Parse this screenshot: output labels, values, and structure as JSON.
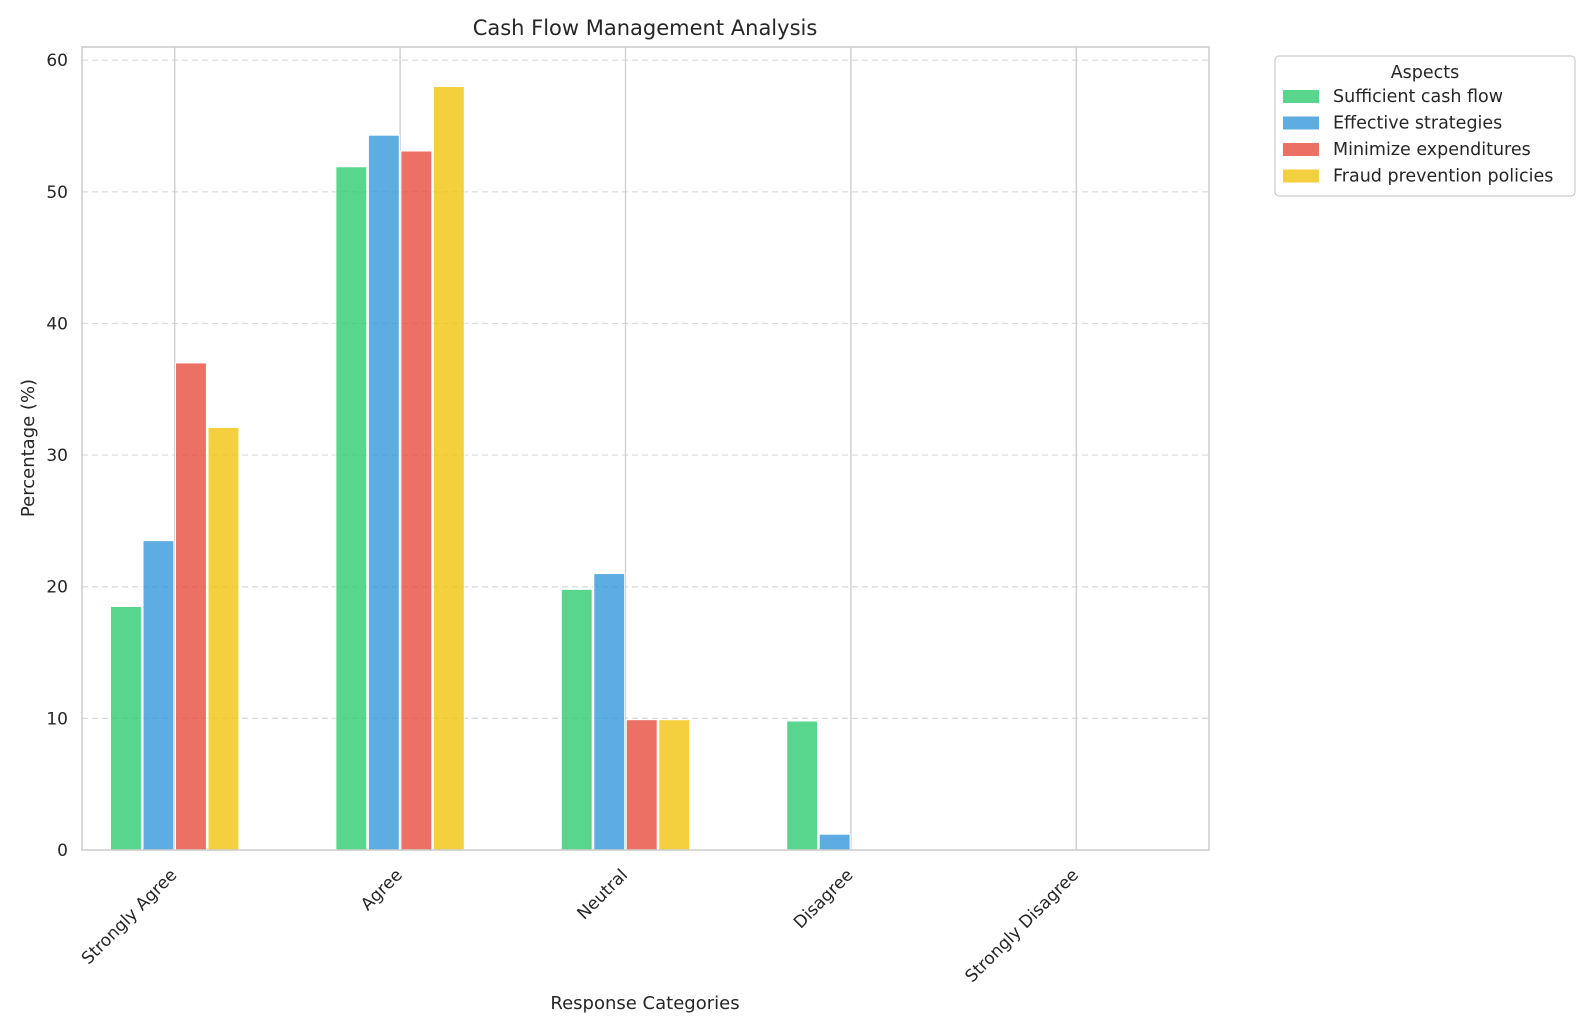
{
  "chart_data": {
    "type": "bar",
    "title": "Cash Flow Management Analysis",
    "xlabel": "Response Categories",
    "ylabel": "Percentage (%)",
    "ylim": [
      0,
      61
    ],
    "yticks": [
      0,
      10,
      20,
      30,
      40,
      50,
      60
    ],
    "grid": "y-dashed",
    "categories": [
      "Strongly Agree",
      "Agree",
      "Neutral",
      "Disagree",
      "Strongly Disagree"
    ],
    "legend": {
      "title": "Aspects",
      "placement": "outside-top-right"
    },
    "series": [
      {
        "name": "Sufficient cash flow",
        "color": "#2ecc71",
        "values": [
          18.5,
          51.9,
          19.8,
          9.8,
          0
        ]
      },
      {
        "name": "Effective strategies",
        "color": "#3498db",
        "values": [
          23.5,
          54.3,
          21.0,
          1.2,
          0
        ]
      },
      {
        "name": "Minimize expenditures",
        "color": "#e74c3c",
        "values": [
          37.0,
          53.1,
          9.9,
          0,
          0
        ]
      },
      {
        "name": "Fraud prevention policies",
        "color": "#f1c40f",
        "values": [
          32.1,
          58.0,
          9.9,
          0,
          0
        ]
      }
    ]
  }
}
